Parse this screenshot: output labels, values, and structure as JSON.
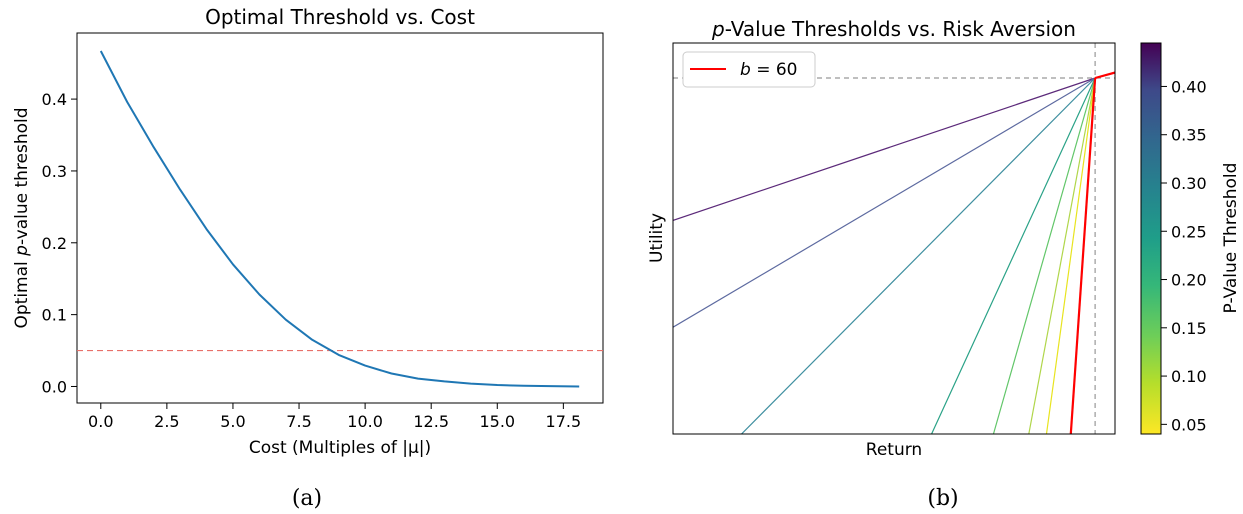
{
  "chart_data": [
    {
      "type": "line",
      "title": "Optimal Threshold vs. Cost",
      "xlabel": "Cost (Multiples of |μ|)",
      "ylabel_pre": "Optimal ",
      "ylabel_italic": "p",
      "ylabel_post": "-value threshold",
      "xlim": [
        -0.9,
        19.0
      ],
      "ylim": [
        -0.023,
        0.492
      ],
      "xticks": [
        0.0,
        2.5,
        5.0,
        7.5,
        10.0,
        12.5,
        15.0,
        17.5
      ],
      "xtick_labels": [
        "0.0",
        "2.5",
        "5.0",
        "7.5",
        "10.0",
        "12.5",
        "15.0",
        "17.5"
      ],
      "yticks": [
        0.0,
        0.1,
        0.2,
        0.3,
        0.4
      ],
      "ytick_labels": [
        "0.0",
        "0.1",
        "0.2",
        "0.3",
        "0.4"
      ],
      "series": [
        {
          "color": "#1f77b4",
          "x": [
            0,
            1,
            2,
            3,
            4,
            5,
            6,
            7,
            8,
            9,
            10,
            11,
            12,
            13,
            14,
            15,
            16,
            17,
            18.1
          ],
          "y": [
            0.467,
            0.396,
            0.333,
            0.274,
            0.219,
            0.17,
            0.128,
            0.093,
            0.065,
            0.044,
            0.029,
            0.018,
            0.011,
            0.007,
            0.004,
            0.002,
            0.001,
            0.0005,
            0.0
          ]
        }
      ],
      "hline": {
        "y": 0.05,
        "color": "#e8706a",
        "style": "dashed"
      },
      "caption": "(a)"
    },
    {
      "type": "line",
      "title_italic": "p",
      "title_rest": "-Value Thresholds vs. Risk Aversion",
      "xlabel": "Return",
      "ylabel": "Utility",
      "legend": {
        "label_italic": "b",
        "label_rest": " = 60",
        "color": "#ff0000",
        "position": "upper left"
      },
      "colorbar": {
        "label": "P-Value Threshold",
        "ticks": [
          0.05,
          0.1,
          0.15,
          0.2,
          0.25,
          0.3,
          0.35,
          0.4
        ],
        "tick_labels": [
          "0.05",
          "0.10",
          "0.15",
          "0.20",
          "0.25",
          "0.30",
          "0.35",
          "0.40"
        ],
        "range": [
          0.04,
          0.445
        ],
        "cmap": "viridis_r"
      },
      "pivot_lines": [
        {
          "color": "#5c2a7a",
          "x0": 0.0,
          "y0": 0.6
        },
        {
          "color": "#5d6aa0",
          "x0": 0.0,
          "y0": 0.3
        },
        {
          "color": "#3f8fa0",
          "x0": 0.155,
          "y0": 0.0
        },
        {
          "color": "#2aa287",
          "x0": 0.585,
          "y0": 0.0
        },
        {
          "color": "#62c66a",
          "x0": 0.725,
          "y0": 0.0
        },
        {
          "color": "#b0d64a",
          "x0": 0.805,
          "y0": 0.0
        },
        {
          "color": "#e8e41f",
          "x0": 0.845,
          "y0": 0.0
        },
        {
          "color": "#ff0000",
          "x0": 0.9,
          "y0": 0.0,
          "highlight": true
        }
      ],
      "pivot": {
        "x": 0.955,
        "y": 1.0
      },
      "upper_line": {
        "x1": 1.25,
        "y1": 1.1,
        "color": "#ff0000"
      },
      "caption": "(b)"
    }
  ]
}
